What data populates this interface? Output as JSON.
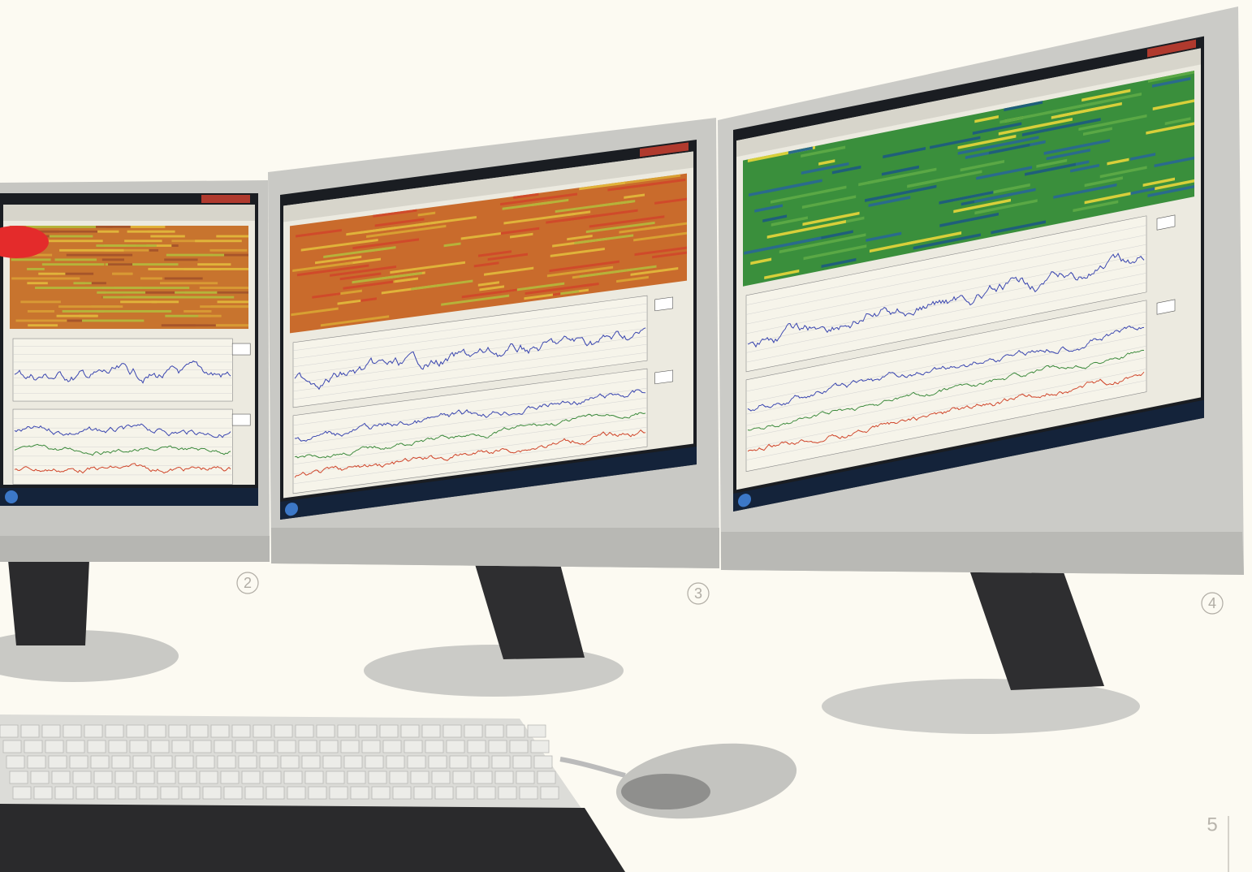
{
  "callouts": [
    "2",
    "3",
    "4"
  ],
  "page_number": "5"
}
